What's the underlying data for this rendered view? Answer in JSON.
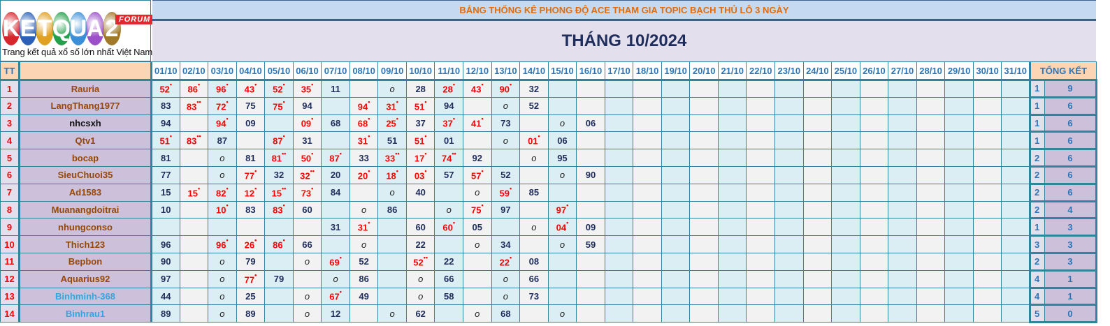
{
  "logo": {
    "text": "KETQUA2",
    "badge": "FORUM",
    "tagline": "Trang kết quả xổ số lớn nhất Việt Nam",
    "ball_colors": [
      "#d7262b",
      "#2b5fb8",
      "#e0a020",
      "#22a04a",
      "#3a8fd8",
      "#9b4fc8",
      "#a07828"
    ]
  },
  "header": {
    "title": "BẢNG THỐNG KÊ PHONG ĐỘ ACE THAM GIA TOPIC BẠCH THỦ LÔ 3 NGÀY",
    "month": "THÁNG 10/2024"
  },
  "table": {
    "tt_label": "TT",
    "name_label": "",
    "total_label": "TỔNG KẾT",
    "dates": [
      "01/10",
      "02/10",
      "03/10",
      "04/10",
      "05/10",
      "06/10",
      "07/10",
      "08/10",
      "09/10",
      "10/10",
      "11/10",
      "12/10",
      "13/10",
      "14/10",
      "15/10",
      "16/10",
      "17/10",
      "18/10",
      "19/10",
      "20/10",
      "21/10",
      "22/10",
      "23/10",
      "24/10",
      "25/10",
      "26/10",
      "27/10",
      "28/10",
      "29/10",
      "30/10",
      "31/10"
    ],
    "rows": [
      {
        "tt": "1",
        "name": "Rauria",
        "name_color": "#974706",
        "cells": [
          "52*",
          "86*",
          "96*",
          "43*",
          "52*",
          "35*",
          "11",
          "",
          "o",
          "28",
          "28*",
          "43*",
          "90*",
          "32",
          "",
          ""
        ],
        "total": [
          "1",
          "9"
        ]
      },
      {
        "tt": "2",
        "name": "LangThang1977",
        "name_color": "#974706",
        "cells": [
          "83",
          "83**",
          "72*",
          "75",
          "75*",
          "94",
          "",
          "94*",
          "31*",
          "51*",
          "94",
          "",
          "o",
          "52",
          "",
          ""
        ],
        "total": [
          "1",
          "6"
        ]
      },
      {
        "tt": "3",
        "name": "nhcsxh",
        "name_color": "#111111",
        "cells": [
          "94",
          "",
          "94*",
          "09",
          "",
          "09*",
          "68",
          "68*",
          "25*",
          "37",
          "37*",
          "41*",
          "73",
          "",
          "o",
          "06"
        ],
        "total": [
          "1",
          "6"
        ]
      },
      {
        "tt": "4",
        "name": "Qtv1",
        "name_color": "#974706",
        "cells": [
          "51*",
          "83**",
          "87",
          "",
          "87*",
          "31",
          "",
          "31*",
          "51",
          "51*",
          "01",
          "",
          "o",
          "01*",
          "06",
          ""
        ],
        "total": [
          "1",
          "6"
        ]
      },
      {
        "tt": "5",
        "name": "bocap",
        "name_color": "#974706",
        "cells": [
          "81",
          "",
          "o",
          "81",
          "81**",
          "50*",
          "87*",
          "33",
          "33**",
          "17*",
          "74**",
          "92",
          "",
          "o",
          "95",
          ""
        ],
        "total": [
          "2",
          "6"
        ]
      },
      {
        "tt": "6",
        "name": "SieuChuoi35",
        "name_color": "#974706",
        "cells": [
          "77",
          "",
          "o",
          "77*",
          "32",
          "32**",
          "20",
          "20*",
          "18*",
          "03*",
          "57",
          "57*",
          "52",
          "",
          "o",
          "90"
        ],
        "total": [
          "2",
          "6"
        ]
      },
      {
        "tt": "7",
        "name": "Ad1583",
        "name_color": "#974706",
        "cells": [
          "15",
          "15*",
          "82*",
          "12*",
          "15**",
          "73*",
          "84",
          "",
          "o",
          "40",
          "",
          "o",
          "59*",
          "85",
          "",
          ""
        ],
        "total": [
          "2",
          "6"
        ]
      },
      {
        "tt": "8",
        "name": "Muanangdoitrai",
        "name_color": "#974706",
        "cells": [
          "10",
          "",
          "10*",
          "83",
          "83*",
          "60",
          "",
          "o",
          "86",
          "",
          "o",
          "75*",
          "97",
          "",
          "97*",
          ""
        ],
        "total": [
          "2",
          "4"
        ]
      },
      {
        "tt": "9",
        "name": "nhungconso",
        "name_color": "#974706",
        "cells": [
          "",
          "",
          "",
          "",
          "",
          "",
          "31",
          "31*",
          "",
          "60",
          "60*",
          "05",
          "",
          "o",
          "04*",
          "09"
        ],
        "total": [
          "1",
          "3"
        ]
      },
      {
        "tt": "10",
        "name": "Thich123",
        "name_color": "#974706",
        "cells": [
          "96",
          "",
          "96*",
          "26*",
          "86*",
          "66",
          "",
          "o",
          "",
          "22",
          "",
          "o",
          "34",
          "",
          "o",
          "59"
        ],
        "total": [
          "3",
          "3"
        ]
      },
      {
        "tt": "11",
        "name": "Bepbon",
        "name_color": "#974706",
        "cells": [
          "90",
          "",
          "o",
          "79",
          "",
          "o",
          "69*",
          "52",
          "",
          "52**",
          "22",
          "",
          "22*",
          "08",
          "",
          ""
        ],
        "total": [
          "2",
          "3"
        ]
      },
      {
        "tt": "12",
        "name": "Aquarius92",
        "name_color": "#974706",
        "cells": [
          "97",
          "",
          "o",
          "77*",
          "79",
          "",
          "o",
          "86",
          "",
          "o",
          "66",
          "",
          "o",
          "66",
          "",
          ""
        ],
        "total": [
          "4",
          "1"
        ]
      },
      {
        "tt": "13",
        "name": "Binhminh-368",
        "name_color": "#33a6e0",
        "cells": [
          "44",
          "",
          "o",
          "25",
          "",
          "o",
          "67*",
          "49",
          "",
          "o",
          "58",
          "",
          "o",
          "73",
          "",
          ""
        ],
        "total": [
          "4",
          "1"
        ]
      },
      {
        "tt": "14",
        "name": "Binhrau1",
        "name_color": "#33a6e0",
        "cells": [
          "89",
          "",
          "o",
          "89",
          "",
          "o",
          "12",
          "",
          "o",
          "62",
          "",
          "o",
          "68",
          "",
          "o",
          ""
        ],
        "total": [
          "5",
          "0"
        ]
      }
    ]
  }
}
